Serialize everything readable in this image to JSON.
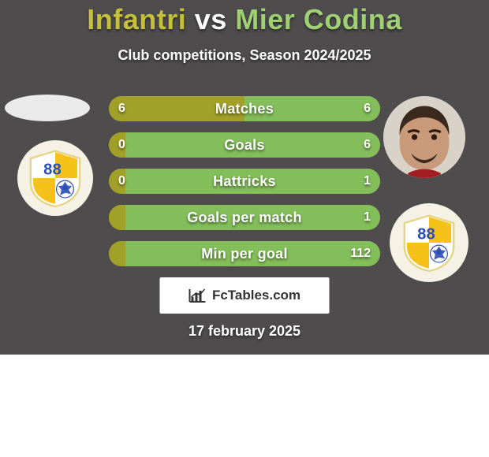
{
  "title": {
    "left": "Infantri",
    "vs": " vs ",
    "right": "Mier Codina"
  },
  "subtitle": "Club competitions, Season 2024/2025",
  "date": "17 february 2025",
  "brand": "FcTables.com",
  "colors": {
    "left": "#a1a129",
    "right": "#84be5b",
    "row_bg": "#94922d",
    "title_left": "#c4c03a",
    "title_right": "#9fd073",
    "avatar_bg": "#e6e6e6",
    "club_bg": "#f5f1e4",
    "shield_yellow": "#f6c21a",
    "shield_blue": "#2a4fb3",
    "page_bg": "#4e4c4d"
  },
  "club_number": "88",
  "rows": [
    {
      "label": "Matches",
      "left": "6",
      "right": "6",
      "lw": 50,
      "rw": 50
    },
    {
      "label": "Goals",
      "left": "0",
      "right": "6",
      "lw": 6,
      "rw": 94
    },
    {
      "label": "Hattricks",
      "left": "0",
      "right": "1",
      "lw": 6,
      "rw": 94
    },
    {
      "label": "Goals per match",
      "left": "",
      "right": "1",
      "lw": 6,
      "rw": 94
    },
    {
      "label": "Min per goal",
      "left": "",
      "right": "112",
      "lw": 6,
      "rw": 94
    }
  ]
}
